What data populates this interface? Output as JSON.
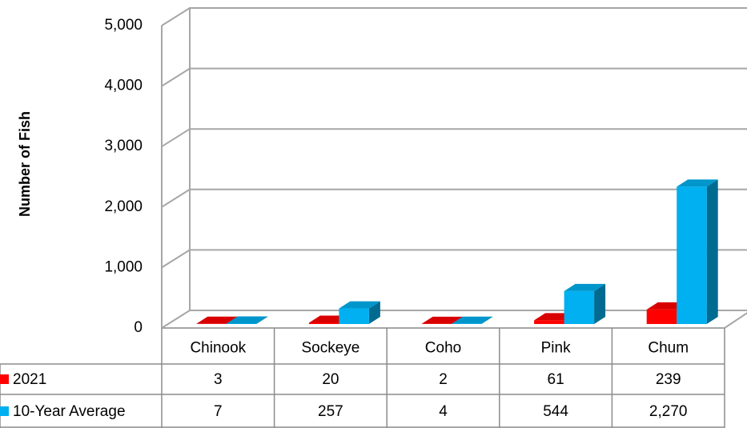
{
  "chart_data": {
    "type": "bar3d",
    "y_label": "Number of Fish",
    "categories": [
      "Chinook",
      "Sockeye",
      "Coho",
      "Pink",
      "Chum"
    ],
    "series": [
      {
        "name": "2021",
        "color": "#ff0000",
        "values": [
          3,
          20,
          2,
          61,
          239
        ]
      },
      {
        "name": "10-Year Average",
        "color": "#00b0f0",
        "values": [
          7,
          257,
          4,
          544,
          2270
        ],
        "value_labels": [
          "7",
          "257",
          "4",
          "544",
          "2,270"
        ]
      }
    ],
    "ylim": [
      0,
      5000
    ],
    "yticks": [
      0,
      {
        "value": 1000,
        "label": "1,000"
      },
      {
        "value": 2000,
        "label": "2,000"
      },
      {
        "value": 3000,
        "label": "3,000"
      },
      {
        "value": 4000,
        "label": "4,000"
      },
      {
        "value": 5000,
        "label": "5,000"
      }
    ],
    "grid": true
  }
}
